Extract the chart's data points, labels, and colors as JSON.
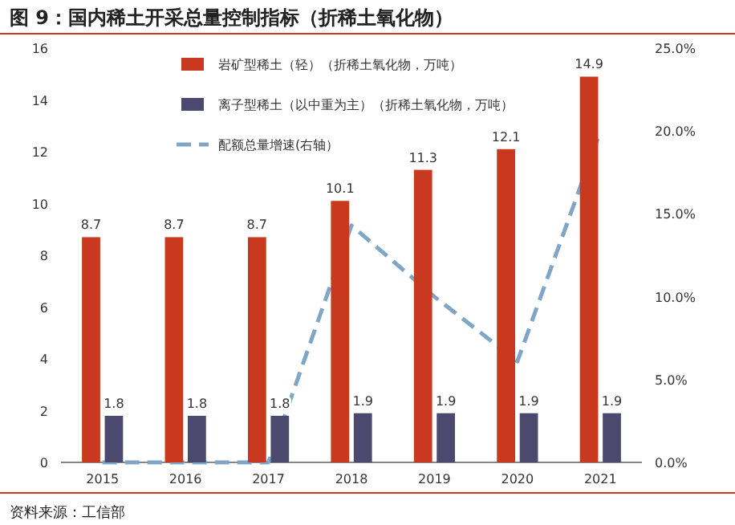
{
  "chart_data": {
    "type": "bar",
    "title": "图 9：国内稀土开采总量控制指标（折稀土氧化物）",
    "categories": [
      "2015",
      "2016",
      "2017",
      "2018",
      "2019",
      "2020",
      "2021"
    ],
    "series": [
      {
        "name": "岩矿型稀土（轻）（折稀土氧化物，万吨）",
        "color": "#c8391f",
        "values": [
          8.7,
          8.7,
          8.7,
          10.1,
          11.3,
          12.1,
          14.9
        ],
        "value_labels": [
          "8.7",
          "8.7",
          "8.7",
          "10.1",
          "11.3",
          "12.1",
          "14.9"
        ]
      },
      {
        "name": "离子型稀土（以中重为主）（折稀土氧化物，万吨）",
        "color": "#4b4a6e",
        "values": [
          1.8,
          1.8,
          1.8,
          1.9,
          1.9,
          1.9,
          1.9
        ],
        "value_labels": [
          "1.8",
          "1.8",
          "1.8",
          "1.9",
          "1.9",
          "1.9",
          "1.9"
        ]
      },
      {
        "name": "配额总量增速(右轴）",
        "color": "#7fa6c6",
        "type": "line",
        "axis": "y2",
        "line_style": "dashed",
        "values": [
          0,
          0,
          0,
          14.3,
          10.0,
          6.1,
          20.0
        ]
      }
    ],
    "ylim": [
      0,
      16
    ],
    "yticks": [
      0,
      2,
      4,
      6,
      8,
      10,
      12,
      14,
      16
    ],
    "y2lim": [
      0,
      25
    ],
    "y2ticks": [
      {
        "value": 0,
        "label": "0.0%"
      },
      {
        "value": 5,
        "label": "5.0%"
      },
      {
        "value": 10,
        "label": "10.0%"
      },
      {
        "value": 15,
        "label": "15.0%"
      },
      {
        "value": 20,
        "label": "20.0%"
      },
      {
        "value": 25,
        "label": "25.0%"
      }
    ],
    "legend": "top",
    "grid": false,
    "annotations": [
      "资料来源：工信部"
    ]
  }
}
